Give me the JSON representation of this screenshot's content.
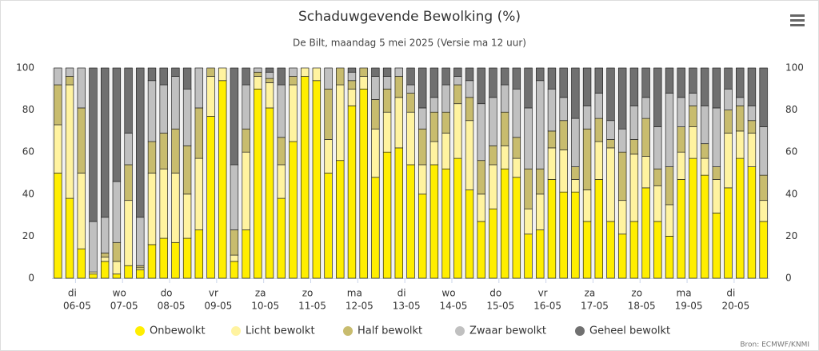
{
  "chart_data": {
    "type": "stacked_bar",
    "title": "Schaduwgevende Bewolking (%)",
    "subtitle": "De Bilt, maandag 5 mei 2025 (Versie ma 12 uur)",
    "credit": "Bron: ECMWF/KNMI",
    "categories": [
      null,
      [
        "di",
        "06-05"
      ],
      null,
      null,
      null,
      [
        "wo",
        "07-05"
      ],
      null,
      null,
      null,
      [
        "do",
        "08-05"
      ],
      null,
      null,
      null,
      [
        "vr",
        "09-05"
      ],
      null,
      null,
      null,
      [
        "za",
        "10-05"
      ],
      null,
      null,
      null,
      [
        "zo",
        "11-05"
      ],
      null,
      null,
      null,
      [
        "ma",
        "12-05"
      ],
      null,
      null,
      null,
      [
        "di",
        "13-05"
      ],
      null,
      null,
      null,
      [
        "wo",
        "14-05"
      ],
      null,
      null,
      null,
      [
        "do",
        "15-05"
      ],
      null,
      null,
      null,
      [
        "vr",
        "16-05"
      ],
      null,
      null,
      null,
      [
        "za",
        "17-05"
      ],
      null,
      null,
      null,
      [
        "zo",
        "18-05"
      ],
      null,
      null,
      null,
      [
        "ma",
        "19-05"
      ],
      null,
      null,
      null,
      [
        "di",
        "20-05"
      ],
      null,
      null,
      null
    ],
    "series": [
      {
        "name": "Onbewolkt",
        "color": "#ffee00",
        "values": [
          50,
          38,
          14,
          2,
          8,
          2,
          6,
          4,
          16,
          19,
          17,
          19,
          23,
          77,
          94,
          8,
          23,
          90,
          81,
          38,
          65,
          96,
          94,
          50,
          56,
          82,
          90,
          48,
          60,
          62,
          54,
          40,
          54,
          52,
          57,
          42,
          27,
          33,
          52,
          48,
          21,
          23,
          47,
          41,
          41,
          27,
          47,
          27,
          21,
          27,
          43,
          27,
          20,
          47,
          57,
          49,
          31,
          43,
          57,
          53,
          27
        ]
      },
      {
        "name": "Licht bewolkt",
        "color": "#fff3a0",
        "values": [
          23,
          54,
          36,
          1,
          2,
          6,
          31,
          1,
          34,
          33,
          33,
          21,
          34,
          19,
          6,
          3,
          37,
          6,
          12,
          16,
          27,
          4,
          6,
          16,
          36,
          8,
          6,
          23,
          19,
          24,
          25,
          14,
          11,
          17,
          26,
          33,
          13,
          21,
          11,
          9,
          12,
          17,
          15,
          20,
          6,
          15,
          18,
          35,
          16,
          32,
          15,
          17,
          15,
          13,
          15,
          8,
          16,
          26,
          13,
          16,
          10
        ]
      },
      {
        "name": "Half bewolkt",
        "color": "#c8bc6e",
        "values": [
          19,
          4,
          31,
          0,
          2,
          9,
          17,
          1,
          15,
          17,
          21,
          23,
          24,
          4,
          0,
          12,
          11,
          2,
          2,
          13,
          4,
          0,
          0,
          24,
          8,
          4,
          4,
          14,
          11,
          10,
          9,
          17,
          14,
          10,
          9,
          11,
          16,
          9,
          16,
          10,
          19,
          12,
          8,
          14,
          6,
          29,
          11,
          4,
          23,
          7,
          18,
          8,
          18,
          12,
          10,
          7,
          6,
          11,
          12,
          6,
          12
        ]
      },
      {
        "name": "Zwaar bewolkt",
        "color": "#c0c0c0",
        "values": [
          8,
          4,
          19,
          24,
          17,
          29,
          15,
          23,
          29,
          23,
          25,
          27,
          19,
          0,
          0,
          31,
          21,
          2,
          3,
          25,
          4,
          0,
          0,
          10,
          0,
          4,
          0,
          11,
          6,
          4,
          4,
          10,
          7,
          13,
          4,
          8,
          27,
          23,
          13,
          23,
          29,
          42,
          20,
          11,
          23,
          11,
          12,
          9,
          11,
          16,
          10,
          20,
          35,
          14,
          6,
          18,
          28,
          10,
          4,
          7,
          23
        ]
      },
      {
        "name": "Geheel bewolkt",
        "color": "#707070",
        "values": [
          0,
          0,
          0,
          73,
          71,
          54,
          31,
          71,
          6,
          8,
          4,
          10,
          0,
          0,
          0,
          46,
          8,
          0,
          2,
          8,
          0,
          0,
          0,
          0,
          0,
          2,
          0,
          4,
          4,
          0,
          8,
          19,
          14,
          8,
          4,
          6,
          17,
          14,
          8,
          10,
          19,
          6,
          10,
          14,
          24,
          18,
          12,
          25,
          29,
          18,
          14,
          28,
          12,
          14,
          12,
          18,
          19,
          10,
          14,
          18,
          28
        ]
      }
    ],
    "ylim": [
      0,
      100
    ],
    "yticks": [
      0,
      20,
      40,
      60,
      80,
      100
    ],
    "y2lim": [
      0,
      100
    ],
    "y2ticks": [
      0,
      20,
      40,
      60,
      80,
      100
    ],
    "grid": false
  }
}
